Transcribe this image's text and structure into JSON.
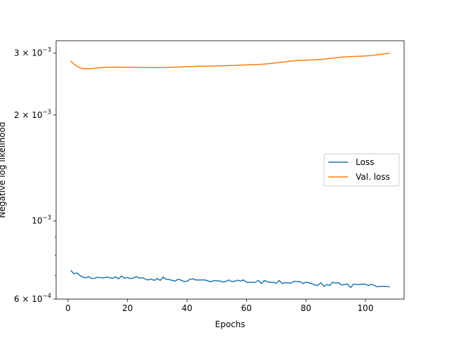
{
  "chart_data": {
    "type": "line",
    "title": "",
    "xlabel": "Epochs",
    "ylabel": "Negative log likelihood",
    "yscale": "log",
    "xlim": [
      -4,
      113
    ],
    "ylim": [
      0.0006,
      0.00325
    ],
    "grid": false,
    "legend_position": "center-right",
    "x_ticks": [
      {
        "value": 0,
        "label": "0"
      },
      {
        "value": 20,
        "label": "20"
      },
      {
        "value": 40,
        "label": "40"
      },
      {
        "value": 60,
        "label": "60"
      },
      {
        "value": 80,
        "label": "80"
      },
      {
        "value": 100,
        "label": "100"
      }
    ],
    "y_ticks": [
      {
        "value": 0.0006,
        "mant": "6 × 10",
        "exp": "−4"
      },
      {
        "value": 0.001,
        "mant": "10",
        "exp": "−3"
      },
      {
        "value": 0.002,
        "mant": "2 × 10",
        "exp": "−3"
      },
      {
        "value": 0.003,
        "mant": "3 × 10",
        "exp": "−3"
      }
    ],
    "y_minor_ticks": [
      0.0007,
      0.0008,
      0.0009
    ],
    "series": [
      {
        "name": "Loss",
        "color": "#1f77b4",
        "x": [
          1,
          2,
          3,
          4,
          5,
          6,
          7,
          8,
          9,
          10,
          11,
          12,
          13,
          14,
          15,
          16,
          17,
          18,
          19,
          20,
          21,
          22,
          23,
          24,
          25,
          26,
          27,
          28,
          29,
          30,
          31,
          32,
          33,
          34,
          35,
          36,
          37,
          38,
          39,
          40,
          41,
          42,
          43,
          44,
          45,
          46,
          47,
          48,
          49,
          50,
          51,
          52,
          53,
          54,
          55,
          56,
          57,
          58,
          59,
          60,
          61,
          62,
          63,
          64,
          65,
          66,
          67,
          68,
          69,
          70,
          71,
          72,
          73,
          74,
          75,
          76,
          77,
          78,
          79,
          80,
          81,
          82,
          83,
          84,
          85,
          86,
          87,
          88,
          89,
          90,
          91,
          92,
          93,
          94,
          95,
          96,
          97,
          98,
          99,
          100,
          101,
          102,
          103,
          104,
          105,
          106,
          107,
          108
        ],
        "values": [
          0.000722,
          0.000708,
          0.000712,
          0.0007,
          0.000693,
          0.000689,
          0.000695,
          0.000686,
          0.000688,
          0.000692,
          0.00069,
          0.000689,
          0.000693,
          0.00069,
          0.000687,
          0.000694,
          0.000685,
          0.000698,
          0.000688,
          0.000691,
          0.000686,
          0.000689,
          0.000695,
          0.000688,
          0.00069,
          0.000684,
          0.00068,
          0.000684,
          0.000678,
          0.000686,
          0.000678,
          0.000693,
          0.000683,
          0.000682,
          0.000678,
          0.000675,
          0.000683,
          0.000679,
          0.000673,
          0.000674,
          0.000683,
          0.000685,
          0.00068,
          0.00068,
          0.00068,
          0.00068,
          0.000676,
          0.000672,
          0.000677,
          0.000676,
          0.000676,
          0.000671,
          0.000673,
          0.00068,
          0.000673,
          0.000674,
          0.000679,
          0.000675,
          0.00068,
          0.00067,
          0.000669,
          0.000669,
          0.00067,
          0.000678,
          0.000664,
          0.000678,
          0.000672,
          0.000669,
          0.00067,
          0.000665,
          0.000678,
          0.000664,
          0.000668,
          0.000667,
          0.000666,
          0.000674,
          0.000672,
          0.000673,
          0.000664,
          0.00067,
          0.000668,
          0.000663,
          0.000658,
          0.000656,
          0.000668,
          0.000652,
          0.00066,
          0.000656,
          0.00067,
          0.000666,
          0.000668,
          0.000658,
          0.00066,
          0.000662,
          0.000647,
          0.000662,
          0.00066,
          0.00066,
          0.000662,
          0.000661,
          0.000656,
          0.000661,
          0.000656,
          0.00065,
          0.000652,
          0.000652,
          0.000652,
          0.00065
        ]
      },
      {
        "name": "Val. loss",
        "color": "#ff7f0e",
        "x": [
          1,
          2,
          3,
          4,
          5,
          6,
          7,
          8,
          10,
          12,
          14,
          16,
          18,
          20,
          22,
          25,
          28,
          30,
          32,
          34,
          36,
          38,
          40,
          42,
          44,
          46,
          48,
          50,
          52,
          54,
          56,
          58,
          60,
          62,
          64,
          66,
          68,
          70,
          72,
          74,
          76,
          78,
          80,
          82,
          84,
          86,
          88,
          90,
          92,
          94,
          96,
          98,
          100,
          102,
          104,
          106,
          108
        ],
        "values": [
          0.00284,
          0.00279,
          0.00275,
          0.002725,
          0.00271,
          0.002705,
          0.002705,
          0.00271,
          0.00272,
          0.002728,
          0.002733,
          0.002735,
          0.002733,
          0.002732,
          0.00273,
          0.002728,
          0.002727,
          0.002727,
          0.002728,
          0.00273,
          0.002734,
          0.002738,
          0.002742,
          0.002746,
          0.00275,
          0.002752,
          0.002754,
          0.002757,
          0.00276,
          0.002763,
          0.002766,
          0.00277,
          0.002774,
          0.002778,
          0.002782,
          0.00279,
          0.0028,
          0.002812,
          0.002825,
          0.002838,
          0.00285,
          0.002858,
          0.002862,
          0.002866,
          0.002872,
          0.00288,
          0.002895,
          0.002908,
          0.00292,
          0.002928,
          0.002932,
          0.002936,
          0.002942,
          0.002952,
          0.002965,
          0.00298,
          0.002995
        ]
      }
    ]
  }
}
